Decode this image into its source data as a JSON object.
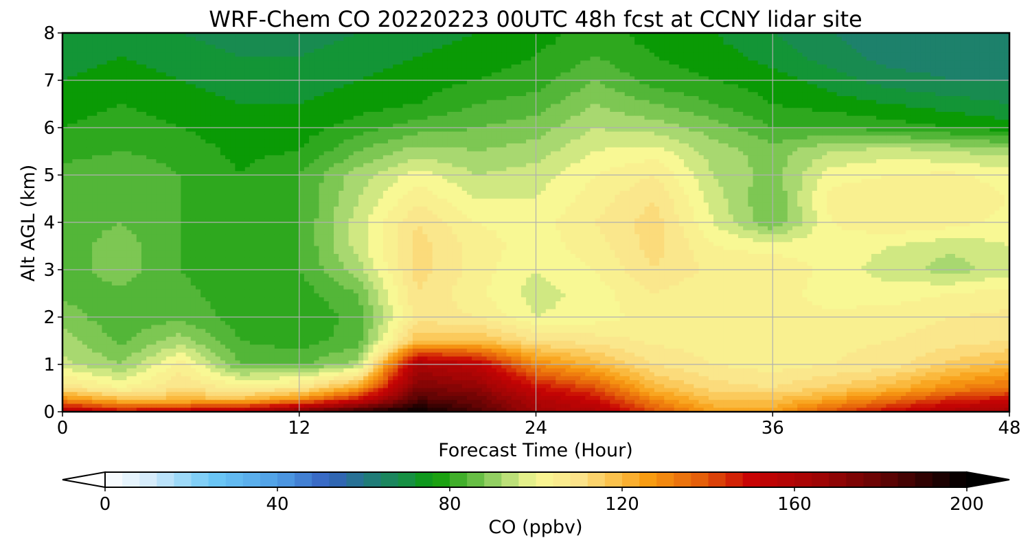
{
  "chart_data": {
    "type": "heatmap",
    "title": "WRF-Chem CO  20220223 00UTC 48h fcst at CCNY lidar site",
    "xlabel": "Forecast Time (Hour)",
    "ylabel": "Alt AGL (km)",
    "xlim": [
      0,
      48
    ],
    "ylim": [
      0,
      8
    ],
    "x_ticks": [
      "0",
      "12",
      "24",
      "36",
      "48"
    ],
    "y_ticks": [
      "0",
      "1",
      "2",
      "3",
      "4",
      "5",
      "6",
      "7",
      "8"
    ],
    "grid": true,
    "x_hours": [
      0,
      3,
      6,
      9,
      12,
      15,
      18,
      21,
      24,
      27,
      30,
      33,
      36,
      39,
      42,
      45,
      48
    ],
    "altitudes_km": [
      0,
      0.25,
      0.5,
      1,
      1.5,
      2,
      2.5,
      3,
      3.5,
      4,
      4.5,
      5,
      5.5,
      6,
      6.5,
      7,
      7.5,
      8
    ],
    "co_ppbv": [
      [
        160,
        150,
        155,
        160,
        175,
        190,
        198,
        185,
        165,
        160,
        140,
        125,
        125,
        140,
        150,
        160,
        165
      ],
      [
        130,
        120,
        120,
        120,
        130,
        150,
        185,
        178,
        160,
        150,
        130,
        118,
        118,
        125,
        135,
        145,
        150
      ],
      [
        110,
        102,
        110,
        105,
        108,
        125,
        175,
        170,
        150,
        140,
        120,
        112,
        110,
        115,
        120,
        130,
        135
      ],
      [
        95,
        90,
        104,
        86,
        85,
        92,
        162,
        155,
        130,
        120,
        110,
        106,
        104,
        106,
        108,
        115,
        120
      ],
      [
        92,
        85,
        92,
        82,
        80,
        84,
        118,
        118,
        110,
        108,
        105,
        104,
        104,
        105,
        106,
        108,
        110
      ],
      [
        88,
        83,
        85,
        80,
        78,
        84,
        108,
        106,
        98,
        100,
        104,
        102,
        103,
        103,
        104,
        106,
        107
      ],
      [
        85,
        85,
        83,
        80,
        80,
        86,
        110,
        103,
        96,
        100,
        106,
        102,
        104,
        100,
        100,
        102,
        104
      ],
      [
        84,
        88,
        82,
        79,
        82,
        92,
        112,
        104,
        98,
        102,
        110,
        105,
        106,
        100,
        96,
        92,
        96
      ],
      [
        84,
        88,
        82,
        79,
        82,
        96,
        112,
        104,
        100,
        104,
        112,
        102,
        100,
        100,
        98,
        95,
        98
      ],
      [
        84,
        86,
        82,
        78,
        82,
        96,
        110,
        102,
        100,
        106,
        112,
        98,
        86,
        102,
        106,
        104,
        100
      ],
      [
        84,
        84,
        82,
        78,
        82,
        94,
        105,
        98,
        98,
        104,
        110,
        96,
        86,
        104,
        106,
        106,
        102
      ],
      [
        84,
        86,
        82,
        78,
        82,
        92,
        100,
        94,
        96,
        102,
        106,
        94,
        88,
        100,
        102,
        103,
        100
      ],
      [
        80,
        82,
        80,
        77,
        78,
        86,
        92,
        90,
        92,
        98,
        100,
        92,
        88,
        94,
        96,
        94,
        92
      ],
      [
        78,
        80,
        78,
        76,
        76,
        80,
        84,
        86,
        88,
        94,
        92,
        88,
        82,
        82,
        80,
        78,
        76
      ],
      [
        76,
        78,
        76,
        74,
        74,
        76,
        78,
        82,
        84,
        90,
        86,
        82,
        78,
        76,
        74,
        72,
        70
      ],
      [
        74,
        76,
        74,
        72,
        72,
        74,
        76,
        78,
        80,
        86,
        80,
        78,
        76,
        72,
        68,
        66,
        66
      ],
      [
        72,
        74,
        72,
        70,
        70,
        72,
        74,
        76,
        78,
        82,
        78,
        76,
        72,
        68,
        64,
        64,
        64
      ],
      [
        70,
        72,
        70,
        68,
        68,
        70,
        72,
        74,
        76,
        80,
        76,
        74,
        70,
        66,
        62,
        62,
        62
      ]
    ],
    "colorbar": {
      "label": "CO  (ppbv)",
      "vmin": 0,
      "vmax": 200,
      "ticks": [
        "0",
        "40",
        "80",
        "120",
        "160",
        "200"
      ],
      "extend": "both",
      "color_stops": [
        {
          "v": 0,
          "c": "#ffffff"
        },
        {
          "v": 10,
          "c": "#d6ecfb"
        },
        {
          "v": 25,
          "c": "#6cc8f6"
        },
        {
          "v": 40,
          "c": "#4f9fe6"
        },
        {
          "v": 52,
          "c": "#3460c0"
        },
        {
          "v": 62,
          "c": "#207c78"
        },
        {
          "v": 72,
          "c": "#139536"
        },
        {
          "v": 76,
          "c": "#0a9a05"
        },
        {
          "v": 85,
          "c": "#5cba3e"
        },
        {
          "v": 92,
          "c": "#a8d870"
        },
        {
          "v": 100,
          "c": "#f8f894"
        },
        {
          "v": 110,
          "c": "#fbe38a"
        },
        {
          "v": 118,
          "c": "#fbc24d"
        },
        {
          "v": 126,
          "c": "#f89c12"
        },
        {
          "v": 138,
          "c": "#e55f0a"
        },
        {
          "v": 150,
          "c": "#c80404"
        },
        {
          "v": 165,
          "c": "#a20505"
        },
        {
          "v": 180,
          "c": "#650404"
        },
        {
          "v": 192,
          "c": "#250101"
        },
        {
          "v": 200,
          "c": "#000000"
        }
      ]
    }
  }
}
